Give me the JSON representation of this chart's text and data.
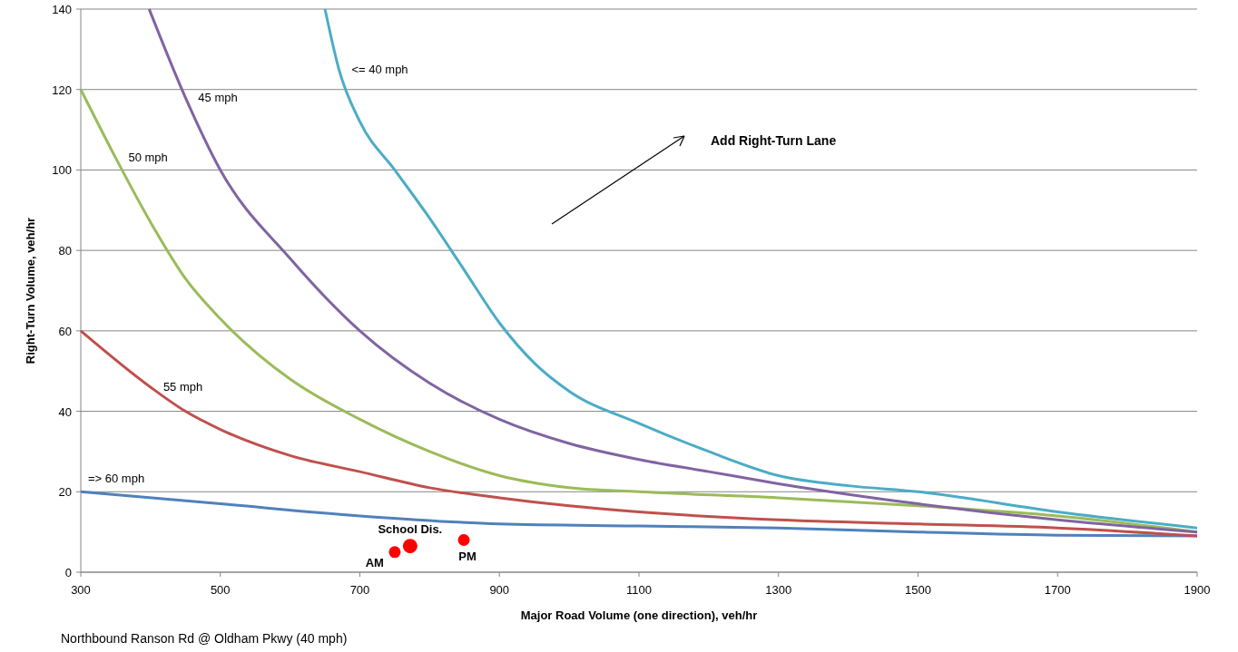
{
  "chart_data": {
    "type": "line",
    "xlabel": "Major Road Volume (one direction), veh/hr",
    "ylabel": "Right-Turn Volume, veh/hr",
    "xlim": [
      300,
      1900
    ],
    "xticks": [
      300,
      500,
      700,
      900,
      1100,
      1300,
      1500,
      1700,
      1900
    ],
    "ylim": [
      0,
      140
    ],
    "yticks": [
      0,
      20,
      40,
      60,
      80,
      100,
      120,
      140
    ],
    "grid": "y",
    "series": [
      {
        "name": "=> 60 mph",
        "color": "#4f81bd",
        "x": [
          300,
          500,
          700,
          900,
          1100,
          1300,
          1500,
          1700,
          1900
        ],
        "values": [
          20,
          17,
          14,
          12,
          11.5,
          11,
          10,
          9.2,
          9
        ]
      },
      {
        "name": "55 mph",
        "color": "#c0504d",
        "x": [
          300,
          400,
          450,
          500,
          600,
          700,
          800,
          900,
          1000,
          1100,
          1300,
          1500,
          1700,
          1900
        ],
        "values": [
          60,
          46,
          40,
          35.5,
          29,
          25,
          21,
          18.5,
          16.5,
          15,
          13,
          12,
          11,
          9
        ]
      },
      {
        "name": "50 mph",
        "color": "#9bbb59",
        "x": [
          300,
          350,
          400,
          450,
          500,
          600,
          700,
          800,
          900,
          1000,
          1100,
          1300,
          1500,
          1700,
          1900
        ],
        "values": [
          120,
          103,
          87,
          73,
          63,
          48,
          38,
          30,
          24,
          21,
          20,
          18.5,
          16.5,
          14,
          10
        ]
      },
      {
        "name": "45 mph",
        "color": "#8064a2",
        "x": [
          398,
          450,
          500,
          600,
          700,
          800,
          900,
          1000,
          1100,
          1200,
          1300,
          1500,
          1700,
          1900
        ],
        "values": [
          140,
          118,
          100,
          78,
          60,
          47,
          38,
          32,
          28,
          25,
          22,
          17,
          13,
          10
        ]
      },
      {
        "name": "<= 40 mph",
        "color": "#4bacc6",
        "x": [
          650,
          670,
          700,
          750,
          800,
          850,
          900,
          950,
          1000,
          1100,
          1200,
          1300,
          1400,
          1500,
          1700,
          1900
        ],
        "values": [
          140,
          125,
          112,
          100,
          88,
          75,
          62,
          52,
          45,
          37,
          30,
          24,
          21.5,
          20,
          15,
          11
        ]
      },
      {
        "name": "AM",
        "type": "scatter",
        "color": "#ff0000",
        "x": [
          750
        ],
        "values": [
          5
        ]
      },
      {
        "name": "School Dis.",
        "type": "scatter",
        "color": "#ff0000",
        "x": [
          772
        ],
        "values": [
          6.5
        ]
      },
      {
        "name": "PM",
        "type": "scatter",
        "color": "#ff0000",
        "x": [
          849
        ],
        "values": [
          8
        ]
      }
    ],
    "annotations": [
      "Add Right-Turn Lane",
      "Northbound Ranson Rd @ Oldham Pkwy (40 mph)"
    ]
  }
}
